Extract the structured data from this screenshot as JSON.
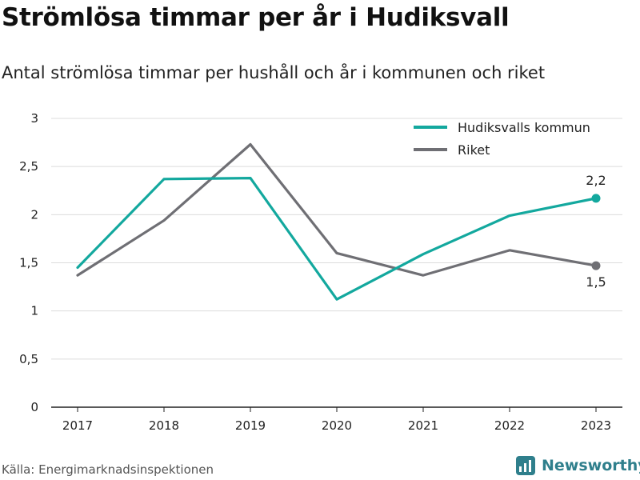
{
  "header": {
    "title": "Strömlösa timmar per år i Hudiksvall",
    "subtitle": "Antal strömlösa timmar per hushåll och år i kommunen och riket"
  },
  "footer": {
    "source": "Källa: Energimarknadsinspektionen",
    "logo_text": "Newsworthy",
    "logo_icon": "newsworthy-logo-icon"
  },
  "colors": {
    "hudiksvall": "#13a89e",
    "riket": "#6f6f74",
    "grid": "#dcdcdc",
    "axis": "#222222",
    "logo": "#2f7f8c"
  },
  "chart_data": {
    "type": "line",
    "title": "Strömlösa timmar per år i Hudiksvall",
    "subtitle": "Antal strömlösa timmar per hushåll och år i kommunen och riket",
    "x": [
      "2017",
      "2018",
      "2019",
      "2020",
      "2021",
      "2022",
      "2023"
    ],
    "series": [
      {
        "name": "Hudiksvalls kommun",
        "color": "#13a89e",
        "values": [
          1.45,
          2.37,
          2.38,
          1.12,
          1.59,
          1.99,
          2.17
        ],
        "end_label": "2,2"
      },
      {
        "name": "Riket",
        "color": "#6f6f74",
        "values": [
          1.37,
          1.94,
          2.73,
          1.6,
          1.37,
          1.63,
          1.47
        ],
        "end_label": "1,5"
      }
    ],
    "ylim": [
      0,
      3
    ],
    "yticks": [
      0,
      0.5,
      1,
      1.5,
      2,
      2.5,
      3
    ],
    "ytick_labels": [
      "0",
      "0,5",
      "1",
      "1,5",
      "2",
      "2,5",
      "3"
    ],
    "grid": true,
    "legend": "top-right",
    "xlabel": "",
    "ylabel": ""
  }
}
